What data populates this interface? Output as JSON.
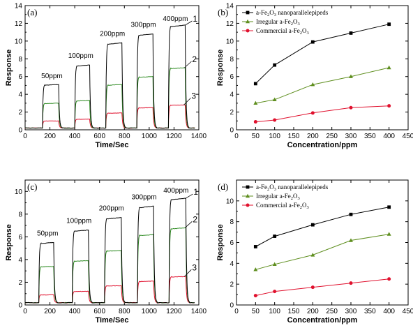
{
  "chart_data": [
    {
      "id": "a",
      "type": "line",
      "panel_label": "(a)",
      "xlabel": "Time/Sec",
      "ylabel": "Response",
      "xlim": [
        0,
        1400
      ],
      "ylim": [
        0,
        14
      ],
      "xticks": [
        0,
        200,
        400,
        600,
        800,
        1000,
        1200,
        1400
      ],
      "yticks": [
        0,
        2,
        4,
        6,
        8,
        10,
        12,
        14
      ],
      "baseline": 0.2,
      "pulses": [
        {
          "label": "50ppm",
          "on": 140,
          "off": 270
        },
        {
          "label": "100ppm",
          "on": 400,
          "off": 520
        },
        {
          "label": "200ppm",
          "on": 650,
          "off": 780
        },
        {
          "label": "300ppm",
          "on": 900,
          "off": 1030
        },
        {
          "label": "400ppm",
          "on": 1155,
          "off": 1290
        }
      ],
      "series": [
        {
          "name": "1",
          "color": "#000000",
          "values": [
            5.1,
            7.3,
            9.8,
            10.8,
            11.8
          ]
        },
        {
          "name": "2",
          "color": "#2e8b22",
          "values": [
            3.0,
            3.3,
            5.1,
            6.0,
            7.0
          ]
        },
        {
          "name": "3",
          "color": "#e0112e",
          "values": [
            1.0,
            1.2,
            1.9,
            2.5,
            2.8
          ]
        }
      ]
    },
    {
      "id": "b",
      "type": "line",
      "panel_label": "(b)",
      "xlabel": "Concentration/ppm",
      "ylabel": "Response",
      "xlim": [
        0,
        450
      ],
      "ylim": [
        0,
        14
      ],
      "xticks": [
        0,
        50,
        100,
        150,
        200,
        250,
        300,
        350,
        400,
        450
      ],
      "yticks": [
        0,
        2,
        4,
        6,
        8,
        10,
        12,
        14
      ],
      "x": [
        50,
        100,
        200,
        300,
        400
      ],
      "series": [
        {
          "name": "a-Fe2O3 nanoparallelepipeds",
          "legend": [
            "a-Fe",
            "2",
            "O",
            "3",
            " nanoparallelepipeds"
          ],
          "marker": "square",
          "color": "#000000",
          "values": [
            5.2,
            7.3,
            9.9,
            10.9,
            11.9
          ]
        },
        {
          "name": "Irregular a-Fe2O3",
          "legend": [
            "Irregular a-Fe",
            "2",
            "O",
            "3",
            ""
          ],
          "marker": "triangle",
          "color": "#5e8e1e",
          "values": [
            3.0,
            3.4,
            5.1,
            6.0,
            7.0
          ]
        },
        {
          "name": "Commercial a-Fe2O3",
          "legend": [
            "Commercial a-Fe",
            "2",
            "O",
            "3",
            ""
          ],
          "marker": "circle",
          "color": "#e0112e",
          "values": [
            0.9,
            1.1,
            1.9,
            2.5,
            2.7
          ]
        }
      ]
    },
    {
      "id": "c",
      "type": "line",
      "panel_label": "(c)",
      "xlabel": "Time/Sec",
      "ylabel": "Response",
      "xlim": [
        0,
        1400
      ],
      "ylim": [
        0,
        11
      ],
      "xticks": [
        0,
        200,
        400,
        600,
        800,
        1000,
        1200,
        1400
      ],
      "yticks": [
        0,
        2,
        4,
        6,
        8,
        10
      ],
      "baseline": 0.2,
      "pulses": [
        {
          "label": "50ppm",
          "on": 110,
          "off": 230
        },
        {
          "label": "100ppm",
          "on": 380,
          "off": 510
        },
        {
          "label": "200ppm",
          "on": 640,
          "off": 775
        },
        {
          "label": "300ppm",
          "on": 905,
          "off": 1035
        },
        {
          "label": "400ppm",
          "on": 1160,
          "off": 1295
        }
      ],
      "series": [
        {
          "name": "1",
          "color": "#000000",
          "values": [
            5.5,
            6.6,
            7.7,
            8.7,
            9.4
          ]
        },
        {
          "name": "2",
          "color": "#2e8b22",
          "values": [
            3.4,
            3.9,
            4.8,
            6.2,
            6.8
          ]
        },
        {
          "name": "3",
          "color": "#e0112e",
          "values": [
            0.9,
            1.2,
            1.7,
            2.1,
            2.5
          ]
        }
      ]
    },
    {
      "id": "d",
      "type": "line",
      "panel_label": "(d)",
      "xlabel": "Concentration/ppm",
      "ylabel": "Response",
      "xlim": [
        0,
        450
      ],
      "ylim": [
        0,
        12
      ],
      "xticks": [
        0,
        50,
        100,
        150,
        200,
        250,
        300,
        350,
        400,
        450
      ],
      "yticks": [
        0,
        2,
        4,
        6,
        8,
        10
      ],
      "x": [
        50,
        100,
        200,
        300,
        400
      ],
      "series": [
        {
          "name": "a-Fe2O3 nanoparallelepipeds",
          "legend": [
            "a-Fe",
            "2",
            "O",
            "3",
            " nanoparallelepipeds"
          ],
          "marker": "square",
          "color": "#000000",
          "values": [
            5.6,
            6.6,
            7.7,
            8.7,
            9.4
          ]
        },
        {
          "name": "Irregular a-Fe2O3",
          "legend": [
            "Irregular a-Fe",
            "2",
            "O",
            "3",
            ""
          ],
          "marker": "triangle",
          "color": "#5e8e1e",
          "values": [
            3.4,
            3.9,
            4.8,
            6.2,
            6.8
          ]
        },
        {
          "name": "Commercial a-Fe2O3",
          "legend": [
            "Commercial a-Fe",
            "2",
            "O",
            "3",
            ""
          ],
          "marker": "circle",
          "color": "#e0112e",
          "values": [
            0.9,
            1.3,
            1.7,
            2.1,
            2.5
          ]
        }
      ]
    }
  ]
}
